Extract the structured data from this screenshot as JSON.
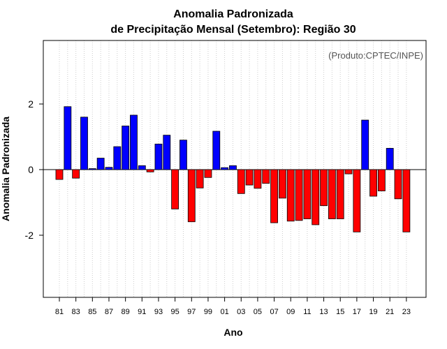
{
  "chart_data": {
    "type": "bar",
    "title": "Anomalia Padronizada",
    "subtitle": "de Precipitação Mensal (Setembro): Região 30",
    "xlabel": "Ano",
    "ylabel": "Anomalia Padronizada",
    "annotation": "(Produto:CPTEC/INPE)",
    "ylim": [
      -3.9,
      3.9
    ],
    "yticks": [
      "-2",
      "0",
      "2"
    ],
    "ytick_values": [
      -2,
      0,
      2
    ],
    "grid": "vertical dotted",
    "colors": {
      "positive": "#0000ff",
      "negative": "#ff0000",
      "outline": "#000000",
      "grid": "#cccccc"
    },
    "categories": [
      "81",
      "82",
      "83",
      "84",
      "85",
      "86",
      "87",
      "88",
      "89",
      "90",
      "91",
      "92",
      "93",
      "94",
      "95",
      "96",
      "97",
      "98",
      "99",
      "00",
      "01",
      "02",
      "03",
      "04",
      "05",
      "06",
      "07",
      "08",
      "09",
      "10",
      "11",
      "12",
      "13",
      "14",
      "15",
      "16",
      "17",
      "18",
      "19",
      "20",
      "21",
      "22",
      "23"
    ],
    "xtick_labels": [
      "81",
      "83",
      "85",
      "87",
      "89",
      "91",
      "93",
      "95",
      "97",
      "99",
      "01",
      "03",
      "05",
      "07",
      "09",
      "11",
      "13",
      "15",
      "17",
      "19",
      "21",
      "23"
    ],
    "values": [
      -0.3,
      1.92,
      -0.26,
      1.6,
      0.03,
      0.35,
      0.07,
      0.7,
      1.33,
      1.66,
      0.12,
      -0.07,
      0.78,
      1.05,
      -1.2,
      0.9,
      -1.59,
      -0.56,
      -0.24,
      1.17,
      0.06,
      0.12,
      -0.73,
      -0.47,
      -0.57,
      -0.42,
      -1.62,
      -0.87,
      -1.57,
      -1.55,
      -1.5,
      -1.68,
      -1.1,
      -1.5,
      -1.5,
      -0.13,
      -1.9,
      1.51,
      -0.81,
      -0.65,
      0.65,
      -0.89,
      -1.9
    ]
  }
}
